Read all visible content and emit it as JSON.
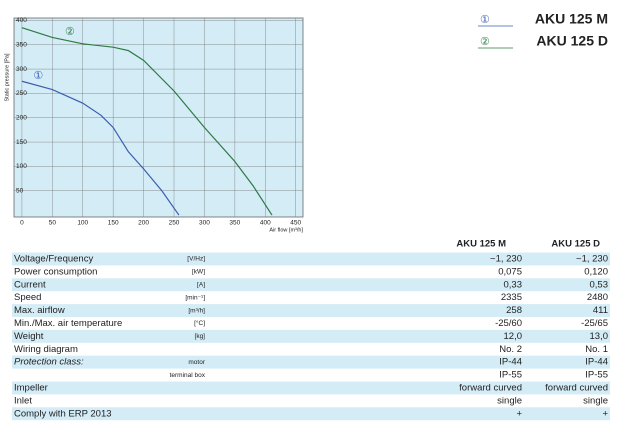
{
  "chart_data": {
    "type": "line",
    "y_label": "Static pressure [Pa]",
    "x_label": "Air flow [m³/h]",
    "xlim": [
      -13,
      462
    ],
    "ylim": [
      -4,
      405
    ],
    "xticks": [
      0,
      50,
      100,
      150,
      200,
      250,
      300,
      350,
      400,
      450
    ],
    "yticks": [
      50,
      100,
      150,
      200,
      250,
      300,
      350,
      400
    ],
    "grid": true,
    "background": "#d3ecf6",
    "series": [
      {
        "name": "AKU 125 M",
        "marker": "①",
        "color": "#3a5fb0",
        "x": [
          0,
          50,
          100,
          130,
          150,
          175,
          200,
          230,
          258
        ],
        "values": [
          275,
          258,
          230,
          205,
          180,
          130,
          95,
          50,
          0
        ]
      },
      {
        "name": "AKU 125 D",
        "marker": "②",
        "color": "#2e7a43",
        "x": [
          0,
          50,
          100,
          150,
          175,
          200,
          250,
          300,
          350,
          380,
          411
        ],
        "values": [
          385,
          365,
          352,
          345,
          338,
          318,
          255,
          180,
          110,
          60,
          0
        ]
      }
    ],
    "annotations": [
      {
        "text": "①",
        "x": 27,
        "y": 286,
        "color": "#3a5fb0"
      },
      {
        "text": "②",
        "x": 79,
        "y": 376,
        "color": "#2e7a43"
      }
    ]
  },
  "table": {
    "columns": [
      "AKU 125 M",
      "AKU 125 D"
    ],
    "rows": [
      {
        "label": "Voltage/Frequency",
        "unit": "[V/Hz]",
        "values": [
          "~1, 230",
          "~1, 230"
        ]
      },
      {
        "label": "Power consumption",
        "unit": "[kW]",
        "values": [
          "0,075",
          "0,120"
        ]
      },
      {
        "label": "Current",
        "unit": "[A]",
        "values": [
          "0,33",
          "0,53"
        ]
      },
      {
        "label": "Speed",
        "unit": "[min⁻¹]",
        "values": [
          "2335",
          "2480"
        ]
      },
      {
        "label": "Max. airflow",
        "unit": "[m³/h]",
        "values": [
          "258",
          "411"
        ]
      },
      {
        "label": "Min./Max. air temperature",
        "unit": "[°C]",
        "values": [
          "-25/60",
          "-25/65"
        ]
      },
      {
        "label": "Weight",
        "unit": "[kg]",
        "values": [
          "12,0",
          "13,0"
        ]
      },
      {
        "label": "Wiring diagram",
        "values": [
          "No. 2",
          "No. 1"
        ]
      },
      {
        "label": "Protection class:",
        "unit": "motor",
        "values": [
          "IP-44",
          "IP-44"
        ]
      },
      {
        "unit": "terminal box",
        "values": [
          "IP-55",
          "IP-55"
        ]
      },
      {
        "label": "Impeller",
        "values": [
          "forward curved",
          "forward curved"
        ]
      },
      {
        "label": "Inlet",
        "values": [
          "single",
          "single"
        ]
      },
      {
        "label": "Comply with ERP 2013",
        "values": [
          "+",
          "+"
        ]
      }
    ]
  }
}
